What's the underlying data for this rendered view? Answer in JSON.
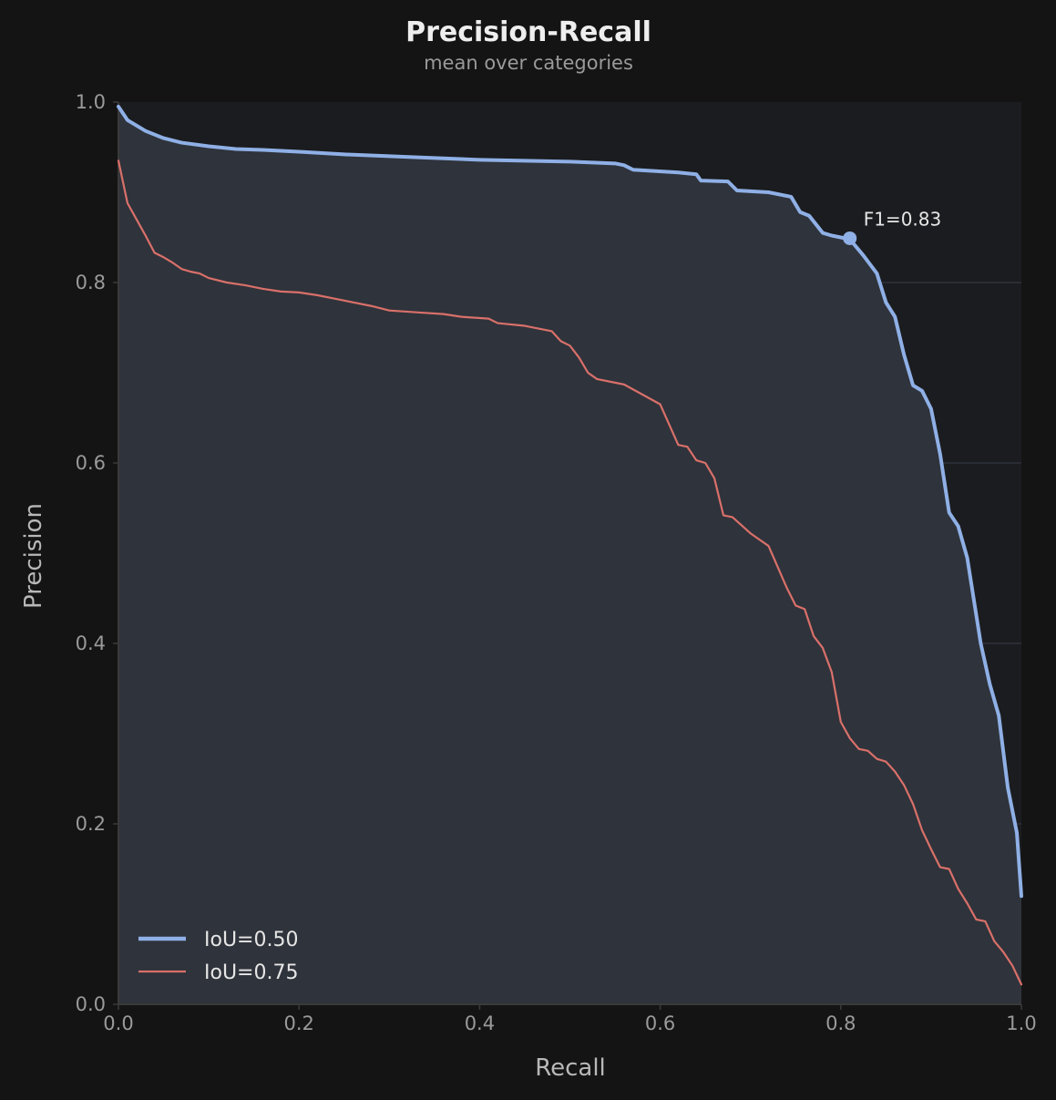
{
  "chart_data": {
    "type": "line",
    "title": "Precision-Recall",
    "subtitle": "mean over categories",
    "xlabel": "Recall",
    "ylabel": "Precision",
    "xlim": [
      0,
      1
    ],
    "ylim": [
      0,
      1
    ],
    "xticks": [
      "0.0",
      "0.2",
      "0.4",
      "0.6",
      "0.8",
      "1.0"
    ],
    "yticks": [
      "0.0",
      "0.2",
      "0.4",
      "0.6",
      "0.8",
      "1.0"
    ],
    "grid": "horizontal",
    "legend": "bottom-left",
    "series": [
      {
        "name": "IoU=0.50",
        "color": "#8fb0e6",
        "filled": true,
        "x": [
          0.0,
          0.01,
          0.03,
          0.05,
          0.07,
          0.1,
          0.13,
          0.16,
          0.2,
          0.25,
          0.3,
          0.35,
          0.4,
          0.45,
          0.5,
          0.55,
          0.56,
          0.57,
          0.62,
          0.64,
          0.645,
          0.675,
          0.685,
          0.72,
          0.745,
          0.755,
          0.765,
          0.78,
          0.79,
          0.81,
          0.825,
          0.84,
          0.85,
          0.86,
          0.87,
          0.88,
          0.89,
          0.9,
          0.91,
          0.92,
          0.93,
          0.94,
          0.955,
          0.965,
          0.975,
          0.985,
          0.995,
          1.0
        ],
        "y": [
          0.995,
          0.98,
          0.968,
          0.96,
          0.955,
          0.951,
          0.948,
          0.947,
          0.945,
          0.942,
          0.94,
          0.938,
          0.936,
          0.935,
          0.934,
          0.932,
          0.93,
          0.925,
          0.922,
          0.92,
          0.913,
          0.912,
          0.902,
          0.9,
          0.895,
          0.878,
          0.874,
          0.855,
          0.852,
          0.848,
          0.83,
          0.81,
          0.778,
          0.762,
          0.72,
          0.686,
          0.68,
          0.66,
          0.61,
          0.545,
          0.53,
          0.495,
          0.4,
          0.355,
          0.32,
          0.24,
          0.19,
          0.12
        ]
      },
      {
        "name": "IoU=0.75",
        "color": "#d9706a",
        "filled": false,
        "x": [
          0.0,
          0.01,
          0.02,
          0.03,
          0.04,
          0.05,
          0.06,
          0.07,
          0.08,
          0.09,
          0.1,
          0.12,
          0.14,
          0.16,
          0.18,
          0.2,
          0.22,
          0.24,
          0.26,
          0.28,
          0.3,
          0.33,
          0.36,
          0.38,
          0.41,
          0.42,
          0.45,
          0.48,
          0.49,
          0.5,
          0.51,
          0.52,
          0.53,
          0.56,
          0.58,
          0.6,
          0.62,
          0.63,
          0.64,
          0.65,
          0.66,
          0.67,
          0.68,
          0.7,
          0.72,
          0.73,
          0.74,
          0.75,
          0.76,
          0.77,
          0.78,
          0.79,
          0.8,
          0.81,
          0.82,
          0.83,
          0.84,
          0.85,
          0.86,
          0.87,
          0.88,
          0.89,
          0.9,
          0.91,
          0.92,
          0.93,
          0.94,
          0.95,
          0.96,
          0.97,
          0.98,
          0.99,
          1.0
        ],
        "y": [
          0.935,
          0.888,
          0.87,
          0.852,
          0.833,
          0.828,
          0.822,
          0.815,
          0.812,
          0.81,
          0.805,
          0.8,
          0.797,
          0.793,
          0.79,
          0.789,
          0.786,
          0.782,
          0.778,
          0.774,
          0.769,
          0.767,
          0.765,
          0.762,
          0.76,
          0.755,
          0.752,
          0.746,
          0.735,
          0.73,
          0.717,
          0.7,
          0.693,
          0.687,
          0.676,
          0.665,
          0.62,
          0.618,
          0.603,
          0.6,
          0.583,
          0.542,
          0.54,
          0.522,
          0.508,
          0.485,
          0.462,
          0.442,
          0.438,
          0.408,
          0.395,
          0.368,
          0.313,
          0.295,
          0.283,
          0.281,
          0.272,
          0.269,
          0.258,
          0.243,
          0.222,
          0.193,
          0.172,
          0.152,
          0.15,
          0.128,
          0.112,
          0.094,
          0.092,
          0.07,
          0.058,
          0.043,
          0.022
        ]
      }
    ],
    "annotations": [
      {
        "label": "F1=0.83",
        "x": 0.81,
        "y": 0.849,
        "series": "IoU=0.50"
      }
    ]
  },
  "colors": {
    "background": "#141414",
    "plot_background": "#1b1c1f",
    "fill": "#2f333b",
    "grid": "#2e323a",
    "axis": "#3a3a3a"
  }
}
